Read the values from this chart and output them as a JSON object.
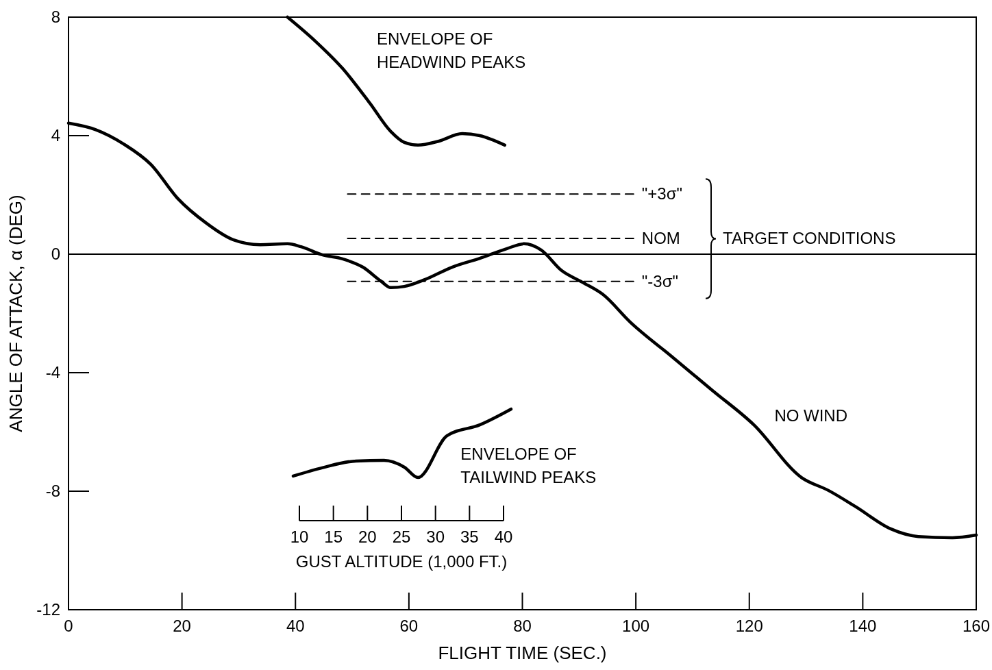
{
  "chart_data": {
    "type": "line",
    "xlabel": "FLIGHT TIME (SEC.)",
    "ylabel": "ANGLE OF ATTACK, α (DEG)",
    "xlim": [
      0,
      160
    ],
    "xticks": [
      0,
      20,
      40,
      60,
      80,
      100,
      120,
      140,
      160
    ],
    "ylim": [
      -12,
      8
    ],
    "yticks": [
      -12,
      -8,
      -4,
      0,
      4,
      8
    ],
    "x2lim": [
      10,
      40
    ],
    "x2label": "GUST ALTITUDE (1,000 FT.)",
    "x2ticks": [
      10,
      15,
      20,
      25,
      30,
      35,
      40
    ],
    "ref_lines": [
      {
        "axis": "y",
        "value": 0
      }
    ],
    "annotations": [
      "TARGET CONDITIONS"
    ],
    "grid": false,
    "marker": "none",
    "line_style": "solid",
    "series": [
      {
        "name": "NO WIND",
        "color": "#000000",
        "x": [
          0,
          4.8,
          9.7,
          14.5,
          19.3,
          24.2,
          29,
          33.8,
          38.6,
          41,
          44.7,
          48.3,
          51.9,
          55,
          56.8,
          59.2,
          62.8,
          67.6,
          72.5,
          77.3,
          80.3,
          83.3,
          86.9,
          90.6,
          94.2,
          99,
          106.3,
          113.5,
          120.8,
          129.2,
          134,
          138.8,
          144.9,
          149.8,
          155.8,
          160
        ],
        "values": [
          4.42,
          4.2,
          3.72,
          3.03,
          1.87,
          1.06,
          0.49,
          0.32,
          0.35,
          0.25,
          -0.02,
          -0.16,
          -0.44,
          -0.9,
          -1.13,
          -1.09,
          -0.86,
          -0.44,
          -0.14,
          0.19,
          0.35,
          0.14,
          -0.55,
          -0.95,
          -1.36,
          -2.29,
          -3.45,
          -4.6,
          -5.76,
          -7.54,
          -7.98,
          -8.53,
          -9.27,
          -9.53,
          -9.57,
          -9.48
        ]
      },
      {
        "name": "ENVELOPE OF HEADWIND PEAKS",
        "color": "#000000",
        "x": [
          38.6,
          43.5,
          48.3,
          53.1,
          56.8,
          59.2,
          61.6,
          65.2,
          69.4,
          72.5,
          76.9
        ],
        "values": [
          8,
          7.19,
          6.27,
          5.1,
          4.14,
          3.77,
          3.68,
          3.81,
          4.07,
          4,
          3.68
        ]
      },
      {
        "name": "ENVELOPE OF TAILWIND PEAKS",
        "color": "#000000",
        "x": [
          39.6,
          44.7,
          50.7,
          55.6,
          59.2,
          61.6,
          66.7,
          72.5,
          78
        ],
        "values": [
          -7.49,
          -7.21,
          -6.98,
          -6.96,
          -7.19,
          -7.54,
          -6.13,
          -5.76,
          -5.23
        ]
      },
      {
        "name": "\"+3σ\"",
        "color": "#000000",
        "line_style": "dashed",
        "x": [
          49.2,
          99.6
        ],
        "values": [
          2.03,
          2.03
        ]
      },
      {
        "name": "NOM",
        "color": "#000000",
        "line_style": "dashed",
        "x": [
          49.2,
          99.6
        ],
        "values": [
          0.53,
          0.53
        ]
      },
      {
        "name": "\"-3σ\"",
        "color": "#000000",
        "line_style": "dashed",
        "x": [
          49.2,
          99.6
        ],
        "values": [
          -0.92,
          -0.92
        ]
      }
    ]
  }
}
